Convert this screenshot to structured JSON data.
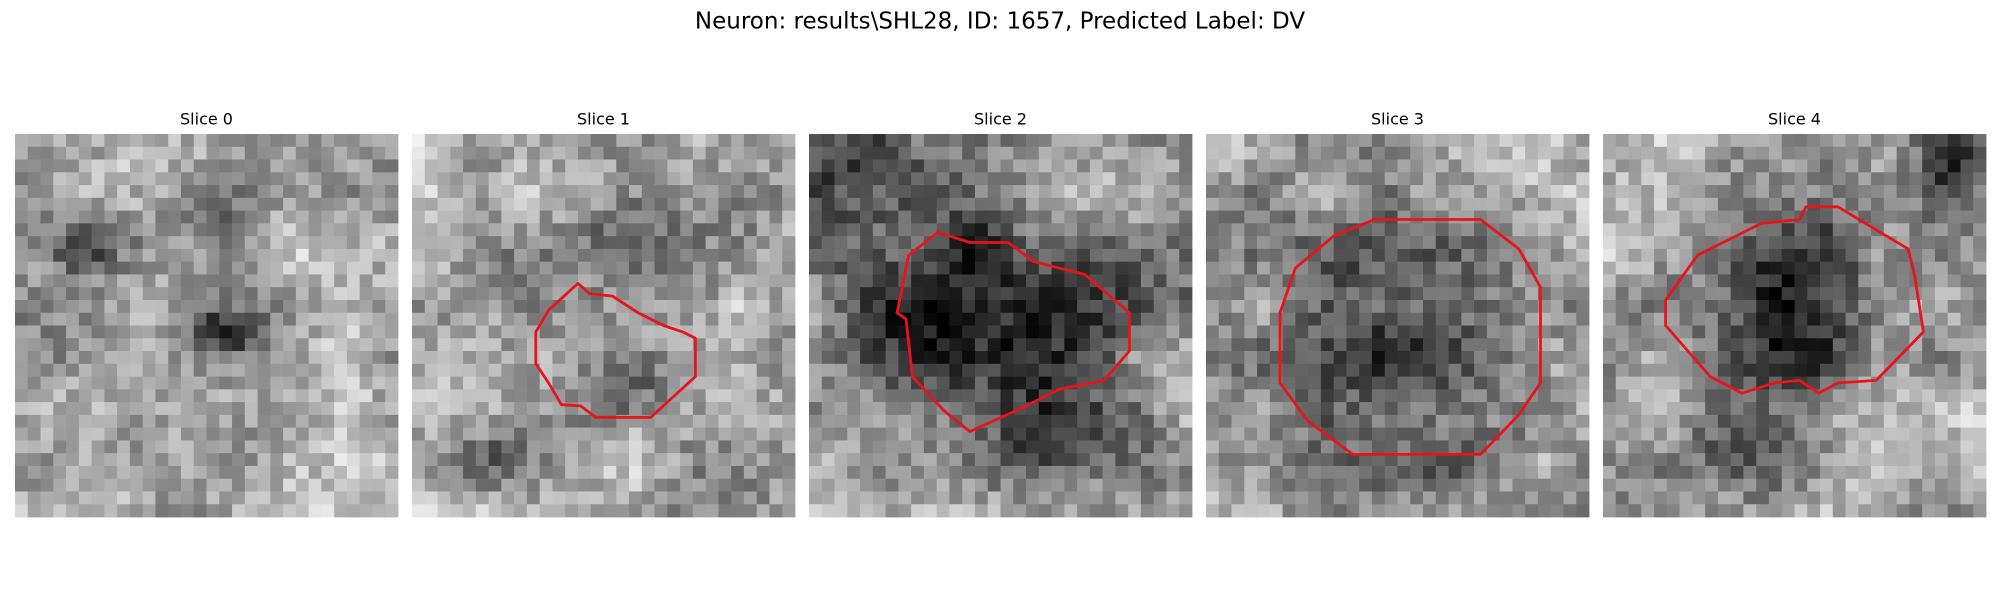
{
  "title": "Neuron: results\\SHL28, ID: 1657, Predicted Label: DV",
  "panels": [
    {
      "title": "Slice 0"
    },
    {
      "title": "Slice 1"
    },
    {
      "title": "Slice 2"
    },
    {
      "title": "Slice 3"
    },
    {
      "title": "Slice 4"
    }
  ]
}
